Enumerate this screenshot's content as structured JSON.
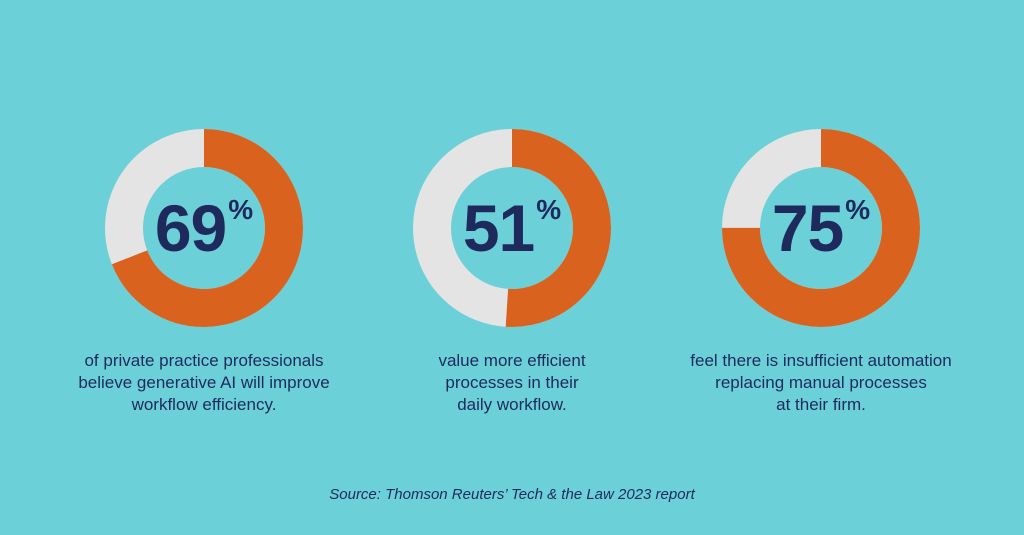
{
  "colors": {
    "background": "#6bd0d8",
    "accent": "#d9621f",
    "track": "#e4e4e4",
    "text": "#1f2a5c"
  },
  "chart_data": [
    {
      "type": "pie",
      "variant": "donut",
      "values": [
        69,
        31
      ],
      "value": "69",
      "unit": "%",
      "caption_lines": [
        "of private practice professionals",
        "believe generative AI will improve",
        "workflow efficiency."
      ]
    },
    {
      "type": "pie",
      "variant": "donut",
      "values": [
        51,
        49
      ],
      "value": "51",
      "unit": "%",
      "caption_lines": [
        "value more efficient",
        "processes in their",
        "daily workflow."
      ]
    },
    {
      "type": "pie",
      "variant": "donut",
      "values": [
        75,
        25
      ],
      "value": "75",
      "unit": "%",
      "caption_lines": [
        "feel there is insufficient automation",
        "replacing manual processes",
        "at their firm."
      ]
    }
  ],
  "source": "Source: Thomson Reuters’ Tech & the Law 2023 report"
}
